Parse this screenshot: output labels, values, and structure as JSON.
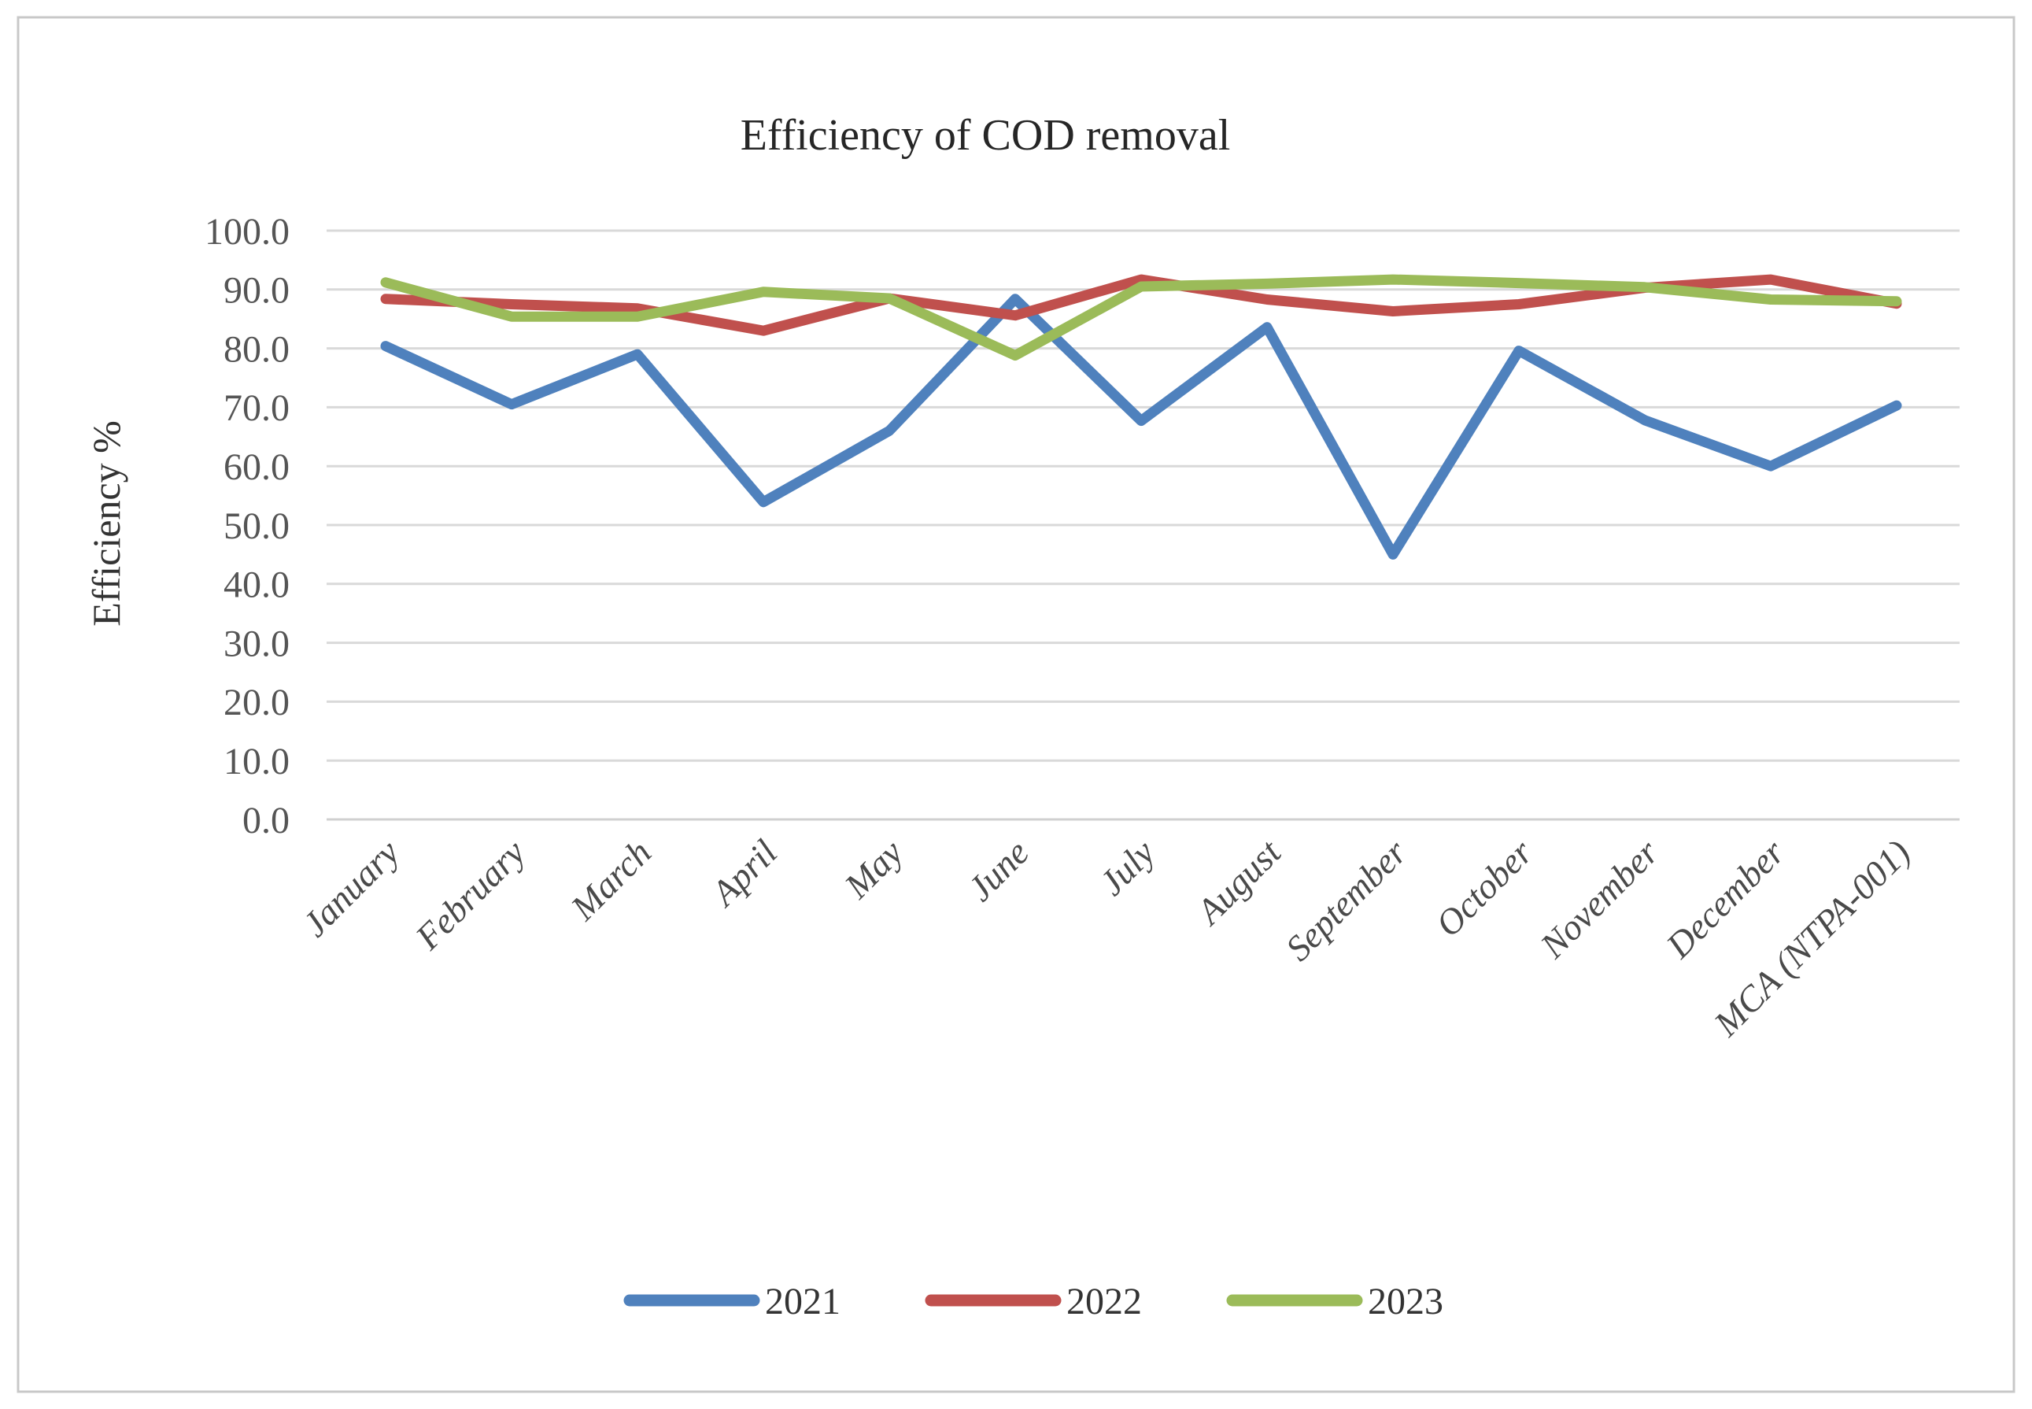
{
  "figure": {
    "background_color": "#ffffff",
    "border_color": "#c8c8c8"
  },
  "chart_data": {
    "type": "line",
    "title": "Efficiency of COD removal",
    "xlabel": "",
    "ylabel": "Efficiency %",
    "ylim": [
      0,
      100
    ],
    "ytick_step": 10,
    "ytick_labels": [
      "0.0",
      "10.0",
      "20.0",
      "30.0",
      "40.0",
      "50.0",
      "60.0",
      "70.0",
      "80.0",
      "90.0",
      "100.0"
    ],
    "ytick_values": [
      0,
      10,
      20,
      30,
      40,
      50,
      60,
      70,
      80,
      90,
      100
    ],
    "grid": true,
    "grid_color": "#d9d9d9",
    "legend_position": "bottom",
    "categories": [
      "January",
      "February",
      "March",
      "April",
      "May",
      "June",
      "July",
      "August",
      "September",
      "October",
      "November",
      "December",
      "MCA (NTPA-001)"
    ],
    "series": [
      {
        "name": "2021",
        "color": "#4F81BD",
        "values": [
          80.4,
          70.5,
          79.0,
          53.9,
          66.0,
          88.4,
          67.7,
          83.6,
          45.0,
          79.6,
          67.8,
          60.0,
          70.3
        ]
      },
      {
        "name": "2022",
        "color": "#C0504D",
        "values": [
          88.4,
          87.5,
          86.8,
          83.0,
          88.5,
          85.6,
          91.7,
          88.3,
          86.3,
          87.5,
          90.3,
          91.7,
          87.6
        ]
      },
      {
        "name": "2023",
        "color": "#9BBB59",
        "values": [
          91.2,
          85.4,
          85.4,
          89.6,
          88.5,
          78.8,
          90.5,
          91.0,
          91.7,
          91.1,
          90.4,
          88.3,
          88.0
        ]
      }
    ]
  }
}
